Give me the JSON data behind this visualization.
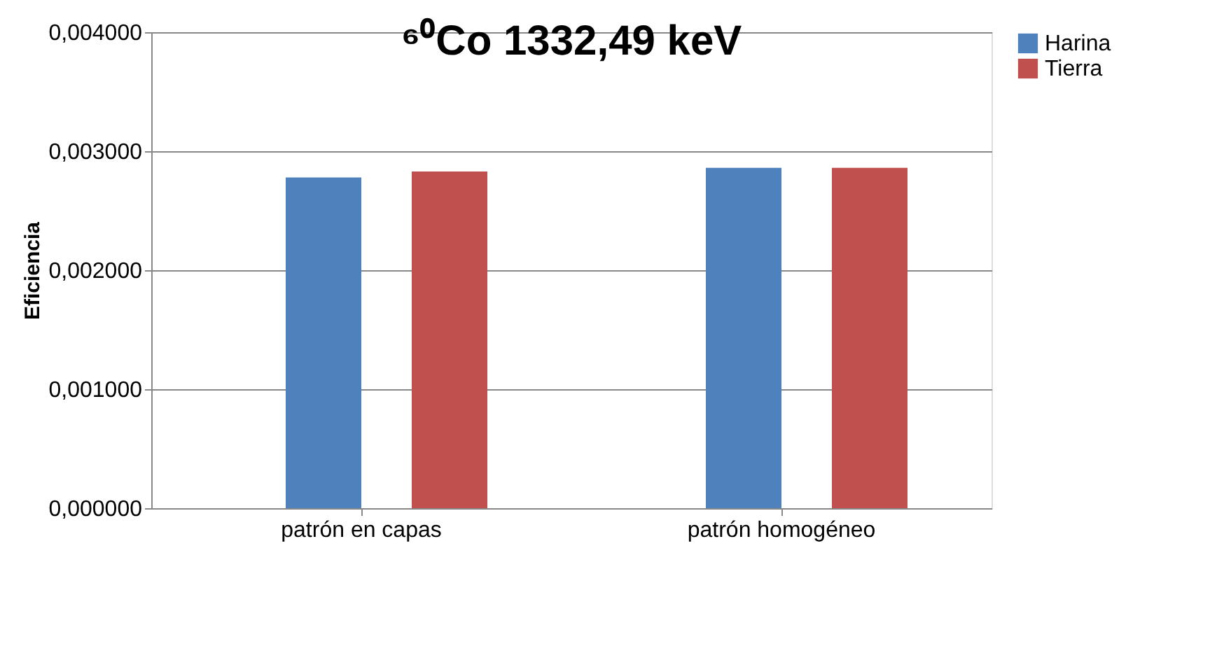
{
  "chart_data": {
    "type": "bar",
    "title": "⁶⁰Co 1332,49 keV",
    "ylabel": "Eficiencia",
    "categories": [
      "patrón en capas",
      "patrón homogéneo"
    ],
    "series": [
      {
        "name": "Harina",
        "color": "#4f81bd",
        "values": [
          0.00278,
          0.00286
        ]
      },
      {
        "name": "Tierra",
        "color": "#c0504d",
        "values": [
          0.00283,
          0.00286
        ]
      }
    ],
    "ylim": [
      0,
      0.004
    ],
    "yticks": [
      {
        "value": 0,
        "label": "0,000000"
      },
      {
        "value": 0.001,
        "label": "0,001000"
      },
      {
        "value": 0.002,
        "label": "0,002000"
      },
      {
        "value": 0.003,
        "label": "0,003000"
      },
      {
        "value": 0.004,
        "label": "0,004000"
      }
    ],
    "grid": "y",
    "legend": "right"
  }
}
